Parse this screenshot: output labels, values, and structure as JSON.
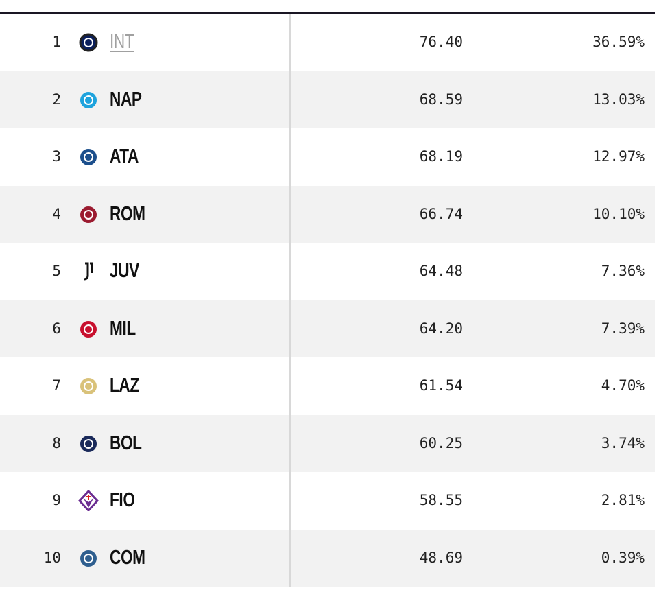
{
  "rows": [
    {
      "rank": "1",
      "team": "INT",
      "rating": "76.40",
      "pct": "36.59%",
      "logo": "inter-crest-icon",
      "color": "#0b1f5c",
      "link": true
    },
    {
      "rank": "2",
      "team": "NAP",
      "rating": "68.59",
      "pct": "13.03%",
      "logo": "napoli-crest-icon",
      "color": "#1ea3dd"
    },
    {
      "rank": "3",
      "team": "ATA",
      "rating": "68.19",
      "pct": "12.97%",
      "logo": "atalanta-crest-icon",
      "color": "#1c4f8c"
    },
    {
      "rank": "4",
      "team": "ROM",
      "rating": "66.74",
      "pct": "10.10%",
      "logo": "roma-crest-icon",
      "color": "#9b1b30"
    },
    {
      "rank": "5",
      "team": "JUV",
      "rating": "64.48",
      "pct": "7.36%",
      "logo": "juventus-crest-icon",
      "color": "#111111"
    },
    {
      "rank": "6",
      "team": "MIL",
      "rating": "64.20",
      "pct": "7.39%",
      "logo": "milan-crest-icon",
      "color": "#c8102e"
    },
    {
      "rank": "7",
      "team": "LAZ",
      "rating": "61.54",
      "pct": "4.70%",
      "logo": "lazio-crest-icon",
      "color": "#d9c27a"
    },
    {
      "rank": "8",
      "team": "BOL",
      "rating": "60.25",
      "pct": "3.74%",
      "logo": "bologna-crest-icon",
      "color": "#1a2a5a"
    },
    {
      "rank": "9",
      "team": "FIO",
      "rating": "58.55",
      "pct": "2.81%",
      "logo": "fiorentina-crest-icon",
      "color": "#6a2c91"
    },
    {
      "rank": "10",
      "team": "COM",
      "rating": "48.69",
      "pct": "0.39%",
      "logo": "como-crest-icon",
      "color": "#2f5f8f"
    }
  ]
}
